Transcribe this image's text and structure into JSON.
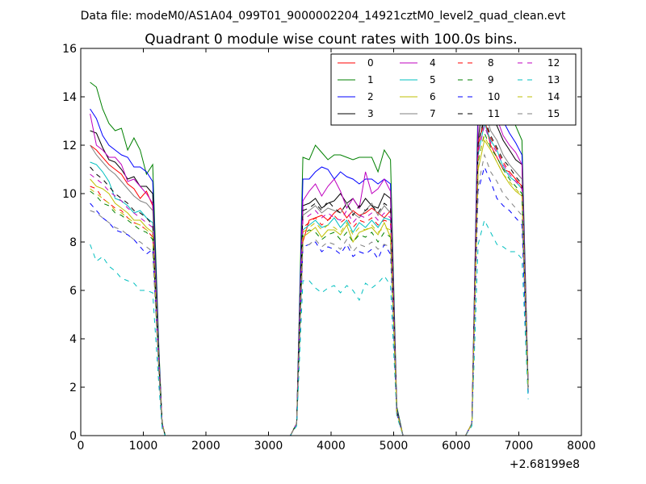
{
  "figure": {
    "suptitle": "Data file: modeM0/AS1A04_099T01_9000002204_14921cztM0_level2_quad_clean.evt"
  },
  "chart_data": {
    "type": "line",
    "title": "Quadrant 0 module wise count rates with 100.0s bins.",
    "xlabel": "",
    "ylabel": "",
    "xlim": [
      0,
      8000
    ],
    "ylim": [
      0,
      16
    ],
    "x_offset_label": "+2.68199e8",
    "xticks": [
      0,
      1000,
      2000,
      3000,
      4000,
      5000,
      6000,
      7000,
      8000
    ],
    "xtick_labels": [
      "0",
      "1000",
      "2000",
      "3000",
      "4000",
      "5000",
      "6000",
      "7000",
      "8000"
    ],
    "yticks": [
      0,
      2,
      4,
      6,
      8,
      10,
      12,
      14,
      16
    ],
    "ytick_labels": [
      "0",
      "2",
      "4",
      "6",
      "8",
      "10",
      "12",
      "14",
      "16"
    ],
    "grid": false,
    "legend_position": "top-right",
    "legend_columns": 4,
    "x": [
      150,
      250,
      350,
      450,
      550,
      650,
      750,
      850,
      950,
      1050,
      1150,
      1250,
      1300,
      1350,
      1450,
      3350,
      3450,
      3550,
      3650,
      3750,
      3850,
      3950,
      4050,
      4150,
      4250,
      4350,
      4450,
      4550,
      4650,
      4750,
      4850,
      4950,
      5050,
      5150,
      5250,
      5350,
      6150,
      6250,
      6350,
      6450,
      6550,
      6650,
      6750,
      6850,
      6950,
      7050,
      7150
    ],
    "series": [
      {
        "name": "0",
        "color": "#ff0000",
        "dash": "solid",
        "values": [
          12.0,
          11.8,
          11.5,
          11.2,
          11.0,
          10.8,
          10.4,
          10.2,
          9.8,
          10.1,
          9.5,
          3.0,
          0.5,
          0,
          0,
          0,
          0.5,
          8.0,
          8.9,
          9.0,
          9.1,
          8.9,
          9.2,
          9.4,
          9.0,
          9.3,
          9.1,
          9.2,
          9.4,
          9.2,
          9.0,
          9.3,
          1.0,
          0,
          0,
          0,
          0,
          0.5,
          12.0,
          13.1,
          12.0,
          11.5,
          11.0,
          10.9,
          10.6,
          10.3,
          2.0
        ]
      },
      {
        "name": "1",
        "color": "#008000",
        "dash": "solid",
        "values": [
          14.6,
          14.4,
          13.5,
          12.9,
          12.6,
          12.7,
          11.8,
          12.3,
          11.8,
          10.8,
          11.2,
          3.5,
          0.5,
          0,
          0,
          0,
          0.5,
          11.5,
          11.4,
          12.0,
          11.7,
          11.4,
          11.6,
          11.6,
          11.5,
          11.4,
          11.5,
          11.5,
          11.5,
          10.9,
          11.8,
          11.4,
          1.2,
          0,
          0,
          0,
          0,
          0.5,
          14.0,
          15.2,
          14.7,
          14.1,
          13.8,
          13.5,
          12.8,
          12.2,
          2.0
        ]
      },
      {
        "name": "2",
        "color": "#0000ff",
        "dash": "solid",
        "values": [
          13.5,
          13.1,
          12.4,
          12.0,
          11.8,
          11.6,
          11.5,
          11.1,
          11.1,
          10.9,
          10.5,
          3.3,
          0.5,
          0,
          0,
          0,
          0.5,
          10.6,
          10.6,
          10.9,
          11.1,
          11.0,
          10.6,
          10.9,
          10.7,
          10.6,
          10.4,
          10.6,
          10.6,
          10.4,
          10.6,
          10.4,
          1.1,
          0,
          0,
          0,
          0,
          0.5,
          13.5,
          15.2,
          14.5,
          13.8,
          13.0,
          12.5,
          12.1,
          11.6,
          2.0
        ]
      },
      {
        "name": "3",
        "color": "#000000",
        "dash": "solid",
        "values": [
          12.6,
          12.5,
          11.9,
          11.4,
          11.3,
          11.0,
          10.6,
          10.7,
          10.3,
          10.3,
          10.0,
          3.1,
          0.5,
          0,
          0,
          0,
          0.5,
          9.5,
          9.6,
          9.8,
          9.4,
          9.6,
          9.7,
          10.0,
          9.6,
          9.8,
          9.4,
          9.8,
          9.5,
          9.4,
          10.0,
          9.8,
          1.0,
          0,
          0,
          0,
          0,
          0.5,
          12.2,
          14.3,
          13.2,
          12.8,
          12.2,
          11.8,
          11.4,
          11.2,
          2.0
        ]
      },
      {
        "name": "4",
        "color": "#bf00bf",
        "dash": "solid",
        "values": [
          13.3,
          12.0,
          11.8,
          11.5,
          11.5,
          11.2,
          10.5,
          10.6,
          10.3,
          10.0,
          9.6,
          3.0,
          0.5,
          0,
          0,
          0,
          0.5,
          9.7,
          10.1,
          10.4,
          9.9,
          10.3,
          10.6,
          10.1,
          9.4,
          9.8,
          9.4,
          10.9,
          10.0,
          10.2,
          10.6,
          10.1,
          1.0,
          0,
          0,
          0,
          0,
          0.5,
          12.8,
          14.6,
          14.0,
          13.1,
          12.4,
          12.0,
          11.7,
          11.2,
          2.0
        ]
      },
      {
        "name": "5",
        "color": "#00bfbf",
        "dash": "solid",
        "values": [
          11.3,
          11.2,
          10.9,
          10.5,
          9.8,
          9.7,
          9.5,
          9.2,
          9.3,
          9.0,
          8.8,
          2.9,
          0.5,
          0,
          0,
          0,
          0.5,
          8.5,
          8.7,
          8.9,
          8.6,
          8.7,
          9.0,
          8.6,
          8.9,
          8.4,
          8.8,
          8.6,
          8.9,
          8.6,
          9.0,
          8.9,
          1.0,
          0,
          0,
          0,
          0,
          0.5,
          11.6,
          12.9,
          12.2,
          11.8,
          11.1,
          10.7,
          10.5,
          10.2,
          1.8
        ]
      },
      {
        "name": "6",
        "color": "#bfbf00",
        "dash": "solid",
        "values": [
          10.6,
          10.3,
          10.2,
          10.0,
          9.6,
          9.4,
          9.2,
          8.9,
          8.9,
          8.6,
          8.4,
          2.8,
          0.5,
          0,
          0,
          0,
          0.5,
          8.2,
          8.4,
          8.6,
          8.2,
          8.5,
          8.5,
          8.3,
          8.7,
          8.0,
          8.4,
          8.5,
          8.6,
          8.3,
          8.8,
          8.2,
          1.0,
          0,
          0,
          0,
          0,
          0.5,
          11.0,
          12.2,
          11.8,
          11.3,
          10.8,
          10.4,
          10.1,
          9.9,
          1.8
        ]
      },
      {
        "name": "7",
        "color": "#808080",
        "dash": "solid",
        "values": [
          12.0,
          11.6,
          11.3,
          11.0,
          10.8,
          10.5,
          10.2,
          9.9,
          9.7,
          9.6,
          9.3,
          3.0,
          0.5,
          0,
          0,
          0,
          0.5,
          9.1,
          9.3,
          9.5,
          9.2,
          9.4,
          9.3,
          9.2,
          9.6,
          9.2,
          9.0,
          9.3,
          9.6,
          9.1,
          9.5,
          9.2,
          1.0,
          0,
          0,
          0,
          0,
          0.5,
          11.8,
          13.5,
          12.6,
          12.2,
          11.6,
          11.2,
          10.9,
          10.6,
          2.0
        ]
      },
      {
        "name": "8",
        "color": "#ff0000",
        "dash": "dashed",
        "values": [
          10.3,
          10.2,
          9.8,
          9.6,
          9.4,
          9.3,
          9.0,
          8.8,
          8.7,
          8.5,
          8.2,
          2.8,
          0.5,
          0,
          0,
          0,
          0.5,
          8.6,
          8.8,
          9.0,
          8.7,
          8.9,
          9.1,
          8.8,
          9.0,
          8.6,
          8.9,
          8.8,
          9.0,
          8.7,
          8.9,
          8.8,
          1.0,
          0,
          0,
          0,
          0,
          0.5,
          12.0,
          13.0,
          12.3,
          11.8,
          11.3,
          10.9,
          10.6,
          10.2,
          2.0
        ]
      },
      {
        "name": "9",
        "color": "#008000",
        "dash": "dashed",
        "values": [
          10.1,
          9.9,
          9.6,
          9.5,
          9.2,
          9.1,
          8.9,
          8.7,
          8.5,
          8.4,
          8.1,
          2.8,
          0.5,
          0,
          0,
          0,
          0.5,
          8.3,
          8.5,
          8.4,
          8.1,
          8.3,
          8.4,
          8.1,
          8.4,
          8.0,
          8.3,
          8.2,
          8.4,
          8.0,
          8.4,
          8.2,
          1.0,
          0,
          0,
          0,
          0,
          0.5,
          11.3,
          12.5,
          11.9,
          11.5,
          11.0,
          10.6,
          10.3,
          10.0,
          1.8
        ]
      },
      {
        "name": "10",
        "color": "#0000ff",
        "dash": "dashed",
        "values": [
          9.6,
          9.3,
          9.0,
          8.8,
          8.5,
          8.4,
          8.3,
          8.1,
          7.8,
          7.5,
          7.7,
          2.6,
          0.5,
          0,
          0,
          0,
          0.5,
          7.8,
          7.9,
          8.0,
          7.6,
          7.8,
          7.7,
          7.5,
          7.9,
          7.4,
          7.6,
          7.5,
          7.7,
          7.3,
          7.9,
          7.5,
          0.9,
          0,
          0,
          0,
          0,
          0.5,
          10.1,
          11.1,
          10.5,
          9.8,
          9.5,
          9.3,
          9.0,
          8.7,
          1.7
        ]
      },
      {
        "name": "11",
        "color": "#000000",
        "dash": "dashed",
        "values": [
          11.1,
          10.8,
          10.6,
          10.3,
          10.0,
          9.8,
          9.6,
          9.3,
          9.2,
          9.0,
          8.7,
          2.9,
          0.5,
          0,
          0,
          0,
          0.5,
          9.3,
          9.4,
          9.6,
          9.3,
          9.7,
          9.4,
          9.2,
          9.6,
          9.1,
          9.5,
          9.3,
          9.5,
          9.2,
          9.6,
          9.4,
          1.0,
          0,
          0,
          0,
          0,
          0.5,
          12.1,
          13.1,
          12.4,
          11.9,
          11.4,
          11.1,
          10.7,
          10.4,
          2.0
        ]
      },
      {
        "name": "12",
        "color": "#bf00bf",
        "dash": "dashed",
        "values": [
          10.8,
          10.6,
          10.4,
          10.1,
          9.9,
          9.7,
          9.4,
          9.2,
          9.0,
          8.8,
          8.6,
          2.8,
          0.5,
          0,
          0,
          0,
          0.5,
          8.9,
          9.1,
          9.3,
          9.0,
          9.2,
          9.0,
          8.9,
          9.3,
          8.8,
          9.1,
          9.0,
          9.2,
          8.9,
          9.2,
          9.0,
          1.0,
          0,
          0,
          0,
          0,
          0.5,
          11.7,
          12.8,
          12.1,
          11.7,
          11.2,
          10.8,
          10.5,
          10.2,
          1.9
        ]
      },
      {
        "name": "13",
        "color": "#00bfbf",
        "dash": "dashed",
        "values": [
          7.9,
          7.2,
          7.4,
          7.0,
          6.8,
          6.5,
          6.4,
          6.3,
          6.0,
          6.0,
          5.9,
          2.0,
          0.3,
          0,
          0,
          0,
          0.4,
          6.4,
          6.4,
          6.1,
          5.9,
          6.1,
          6.2,
          5.9,
          6.2,
          6.0,
          5.6,
          6.3,
          6.1,
          6.3,
          6.6,
          6.2,
          0.8,
          0,
          0,
          0,
          0,
          0.4,
          7.9,
          8.9,
          8.4,
          7.9,
          7.8,
          7.6,
          7.6,
          7.3,
          1.5
        ]
      },
      {
        "name": "14",
        "color": "#bfbf00",
        "dash": "dashed",
        "values": [
          10.2,
          10.0,
          9.8,
          9.6,
          9.3,
          9.2,
          9.0,
          8.8,
          8.7,
          8.5,
          8.3,
          2.7,
          0.5,
          0,
          0,
          0,
          0.5,
          8.4,
          8.6,
          8.8,
          8.5,
          8.7,
          8.6,
          8.4,
          8.8,
          8.3,
          8.6,
          8.5,
          8.7,
          8.4,
          8.6,
          8.5,
          1.0,
          0,
          0,
          0,
          0,
          0.5,
          11.4,
          12.4,
          11.8,
          11.3,
          10.8,
          10.5,
          10.2,
          9.9,
          1.9
        ]
      },
      {
        "name": "15",
        "color": "#808080",
        "dash": "dashed",
        "values": [
          9.3,
          9.2,
          9.0,
          8.8,
          8.6,
          8.5,
          8.3,
          8.1,
          8.0,
          7.8,
          7.6,
          2.5,
          0.4,
          0,
          0,
          0,
          0.5,
          7.8,
          7.9,
          8.1,
          7.8,
          8.0,
          7.9,
          7.7,
          8.1,
          7.6,
          7.9,
          7.8,
          8.0,
          7.7,
          7.9,
          7.8,
          0.9,
          0,
          0,
          0,
          0,
          0.5,
          10.3,
          11.6,
          10.9,
          10.5,
          10.0,
          9.7,
          9.4,
          9.1,
          1.8
        ]
      }
    ]
  }
}
